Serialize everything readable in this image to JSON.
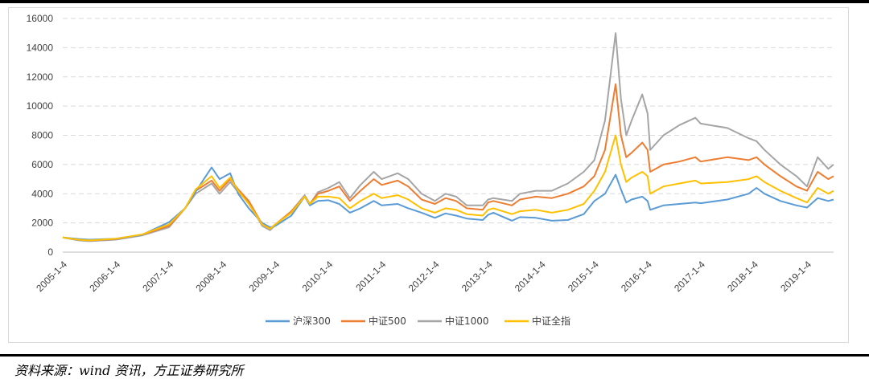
{
  "source_note": "资料来源：wind 资讯，方正证券研究所",
  "chart_data": {
    "type": "line",
    "ylim": [
      0,
      16000
    ],
    "yticks": [
      0,
      2000,
      4000,
      6000,
      8000,
      10000,
      12000,
      14000,
      16000
    ],
    "ytick_labels": [
      "0",
      "2000",
      "4000",
      "6000",
      "8000",
      "10000",
      "12000",
      "14000",
      "16000"
    ],
    "xlim": [
      2005.0,
      2019.5
    ],
    "xticks": [
      2005,
      2006,
      2007,
      2008,
      2009,
      2010,
      2011,
      2012,
      2013,
      2014,
      2015,
      2016,
      2017,
      2018,
      2019
    ],
    "xtick_labels": [
      "2005-1-4",
      "2006-1-4",
      "2007-1-4",
      "2008-1-4",
      "2009-1-4",
      "2010-1-4",
      "2011-1-4",
      "2012-1-4",
      "2013-1-4",
      "2014-1-4",
      "2015-1-4",
      "2016-1-4",
      "2017-1-4",
      "2018-1-4",
      "2019-1-4"
    ],
    "grid": "horizontal-dashed",
    "legend_position": "bottom",
    "series": [
      {
        "name": "沪深300",
        "color": "#5b9bd5",
        "points": [
          [
            2005.0,
            1000
          ],
          [
            2005.3,
            900
          ],
          [
            2005.5,
            850
          ],
          [
            2006.0,
            923
          ],
          [
            2006.5,
            1200
          ],
          [
            2007.0,
            2050
          ],
          [
            2007.3,
            3000
          ],
          [
            2007.6,
            4700
          ],
          [
            2007.8,
            5800
          ],
          [
            2007.95,
            5000
          ],
          [
            2008.15,
            5400
          ],
          [
            2008.3,
            4000
          ],
          [
            2008.5,
            3000
          ],
          [
            2008.75,
            2000
          ],
          [
            2008.9,
            1700
          ],
          [
            2009.0,
            1800
          ],
          [
            2009.3,
            2500
          ],
          [
            2009.55,
            3800
          ],
          [
            2009.65,
            3200
          ],
          [
            2009.8,
            3500
          ],
          [
            2010.0,
            3550
          ],
          [
            2010.2,
            3300
          ],
          [
            2010.4,
            2700
          ],
          [
            2010.6,
            3000
          ],
          [
            2010.85,
            3500
          ],
          [
            2011.0,
            3200
          ],
          [
            2011.3,
            3300
          ],
          [
            2011.5,
            3000
          ],
          [
            2011.75,
            2700
          ],
          [
            2012.0,
            2350
          ],
          [
            2012.2,
            2650
          ],
          [
            2012.4,
            2500
          ],
          [
            2012.6,
            2300
          ],
          [
            2012.9,
            2200
          ],
          [
            2013.0,
            2550
          ],
          [
            2013.1,
            2700
          ],
          [
            2013.45,
            2150
          ],
          [
            2013.6,
            2400
          ],
          [
            2013.9,
            2350
          ],
          [
            2014.2,
            2150
          ],
          [
            2014.5,
            2200
          ],
          [
            2014.8,
            2600
          ],
          [
            2015.0,
            3500
          ],
          [
            2015.2,
            4000
          ],
          [
            2015.4,
            5300
          ],
          [
            2015.5,
            4300
          ],
          [
            2015.6,
            3400
          ],
          [
            2015.7,
            3600
          ],
          [
            2015.9,
            3800
          ],
          [
            2016.0,
            3500
          ],
          [
            2016.05,
            2900
          ],
          [
            2016.3,
            3200
          ],
          [
            2016.6,
            3300
          ],
          [
            2016.9,
            3400
          ],
          [
            2017.0,
            3350
          ],
          [
            2017.5,
            3600
          ],
          [
            2017.9,
            4000
          ],
          [
            2018.05,
            4400
          ],
          [
            2018.2,
            4000
          ],
          [
            2018.5,
            3500
          ],
          [
            2018.8,
            3200
          ],
          [
            2019.0,
            3050
          ],
          [
            2019.2,
            3700
          ],
          [
            2019.4,
            3500
          ],
          [
            2019.5,
            3600
          ]
        ]
      },
      {
        "name": "中证500",
        "color": "#ed7d31",
        "points": [
          [
            2005.0,
            1000
          ],
          [
            2005.3,
            850
          ],
          [
            2005.5,
            800
          ],
          [
            2006.0,
            900
          ],
          [
            2006.5,
            1200
          ],
          [
            2007.0,
            1800
          ],
          [
            2007.3,
            3000
          ],
          [
            2007.5,
            4200
          ],
          [
            2007.8,
            4900
          ],
          [
            2007.95,
            4200
          ],
          [
            2008.15,
            5000
          ],
          [
            2008.3,
            4300
          ],
          [
            2008.5,
            3500
          ],
          [
            2008.75,
            1900
          ],
          [
            2008.9,
            1600
          ],
          [
            2009.0,
            1900
          ],
          [
            2009.3,
            2800
          ],
          [
            2009.55,
            3800
          ],
          [
            2009.65,
            3300
          ],
          [
            2009.8,
            4000
          ],
          [
            2010.0,
            4200
          ],
          [
            2010.2,
            4500
          ],
          [
            2010.4,
            3500
          ],
          [
            2010.6,
            4200
          ],
          [
            2010.85,
            5000
          ],
          [
            2011.0,
            4600
          ],
          [
            2011.3,
            4900
          ],
          [
            2011.5,
            4500
          ],
          [
            2011.75,
            3600
          ],
          [
            2012.0,
            3300
          ],
          [
            2012.2,
            3700
          ],
          [
            2012.4,
            3500
          ],
          [
            2012.6,
            3000
          ],
          [
            2012.9,
            2900
          ],
          [
            2013.0,
            3400
          ],
          [
            2013.1,
            3500
          ],
          [
            2013.45,
            3200
          ],
          [
            2013.6,
            3600
          ],
          [
            2013.9,
            3800
          ],
          [
            2014.2,
            3700
          ],
          [
            2014.5,
            4000
          ],
          [
            2014.8,
            4500
          ],
          [
            2015.0,
            5200
          ],
          [
            2015.2,
            7000
          ],
          [
            2015.4,
            11500
          ],
          [
            2015.5,
            8000
          ],
          [
            2015.6,
            6500
          ],
          [
            2015.7,
            6800
          ],
          [
            2015.9,
            7500
          ],
          [
            2016.0,
            7000
          ],
          [
            2016.05,
            5500
          ],
          [
            2016.3,
            6000
          ],
          [
            2016.6,
            6200
          ],
          [
            2016.9,
            6500
          ],
          [
            2017.0,
            6200
          ],
          [
            2017.5,
            6500
          ],
          [
            2017.9,
            6300
          ],
          [
            2018.05,
            6500
          ],
          [
            2018.2,
            6000
          ],
          [
            2018.5,
            5200
          ],
          [
            2018.8,
            4500
          ],
          [
            2019.0,
            4200
          ],
          [
            2019.2,
            5500
          ],
          [
            2019.4,
            5000
          ],
          [
            2019.5,
            5200
          ]
        ]
      },
      {
        "name": "中证1000",
        "color": "#a5a5a5",
        "points": [
          [
            2005.0,
            1000
          ],
          [
            2005.3,
            800
          ],
          [
            2005.5,
            750
          ],
          [
            2006.0,
            850
          ],
          [
            2006.5,
            1150
          ],
          [
            2007.0,
            1700
          ],
          [
            2007.3,
            3000
          ],
          [
            2007.5,
            4000
          ],
          [
            2007.8,
            4700
          ],
          [
            2007.95,
            4000
          ],
          [
            2008.15,
            4800
          ],
          [
            2008.3,
            4100
          ],
          [
            2008.5,
            3400
          ],
          [
            2008.75,
            1800
          ],
          [
            2008.9,
            1500
          ],
          [
            2009.0,
            1850
          ],
          [
            2009.3,
            2800
          ],
          [
            2009.55,
            3900
          ],
          [
            2009.65,
            3300
          ],
          [
            2009.8,
            4100
          ],
          [
            2010.0,
            4400
          ],
          [
            2010.2,
            4800
          ],
          [
            2010.4,
            3700
          ],
          [
            2010.6,
            4600
          ],
          [
            2010.85,
            5500
          ],
          [
            2011.0,
            5000
          ],
          [
            2011.3,
            5400
          ],
          [
            2011.5,
            5000
          ],
          [
            2011.75,
            4000
          ],
          [
            2012.0,
            3500
          ],
          [
            2012.2,
            4000
          ],
          [
            2012.4,
            3800
          ],
          [
            2012.6,
            3200
          ],
          [
            2012.9,
            3200
          ],
          [
            2013.0,
            3600
          ],
          [
            2013.1,
            3700
          ],
          [
            2013.45,
            3500
          ],
          [
            2013.6,
            4000
          ],
          [
            2013.9,
            4200
          ],
          [
            2014.2,
            4200
          ],
          [
            2014.5,
            4700
          ],
          [
            2014.8,
            5500
          ],
          [
            2015.0,
            6300
          ],
          [
            2015.2,
            9000
          ],
          [
            2015.4,
            15000
          ],
          [
            2015.5,
            10500
          ],
          [
            2015.6,
            8000
          ],
          [
            2015.7,
            9000
          ],
          [
            2015.9,
            10800
          ],
          [
            2016.0,
            9500
          ],
          [
            2016.05,
            7000
          ],
          [
            2016.3,
            8000
          ],
          [
            2016.6,
            8700
          ],
          [
            2016.9,
            9200
          ],
          [
            2017.0,
            8800
          ],
          [
            2017.5,
            8500
          ],
          [
            2017.9,
            7800
          ],
          [
            2018.05,
            7600
          ],
          [
            2018.2,
            7000
          ],
          [
            2018.5,
            6000
          ],
          [
            2018.8,
            5200
          ],
          [
            2019.0,
            4500
          ],
          [
            2019.2,
            6500
          ],
          [
            2019.4,
            5700
          ],
          [
            2019.5,
            6000
          ]
        ]
      },
      {
        "name": "中证全指",
        "color": "#ffc000",
        "points": [
          [
            2005.0,
            1000
          ],
          [
            2005.3,
            850
          ],
          [
            2005.5,
            800
          ],
          [
            2006.0,
            920
          ],
          [
            2006.5,
            1220
          ],
          [
            2007.0,
            1900
          ],
          [
            2007.3,
            3000
          ],
          [
            2007.5,
            4300
          ],
          [
            2007.8,
            5200
          ],
          [
            2007.95,
            4400
          ],
          [
            2008.15,
            5100
          ],
          [
            2008.3,
            4200
          ],
          [
            2008.5,
            3300
          ],
          [
            2008.75,
            1900
          ],
          [
            2008.9,
            1600
          ],
          [
            2009.0,
            1900
          ],
          [
            2009.3,
            2700
          ],
          [
            2009.55,
            3800
          ],
          [
            2009.65,
            3300
          ],
          [
            2009.8,
            3800
          ],
          [
            2010.0,
            3800
          ],
          [
            2010.2,
            3700
          ],
          [
            2010.4,
            3000
          ],
          [
            2010.6,
            3500
          ],
          [
            2010.85,
            4000
          ],
          [
            2011.0,
            3700
          ],
          [
            2011.3,
            3900
          ],
          [
            2011.5,
            3600
          ],
          [
            2011.75,
            3000
          ],
          [
            2012.0,
            2700
          ],
          [
            2012.2,
            3000
          ],
          [
            2012.4,
            2900
          ],
          [
            2012.6,
            2600
          ],
          [
            2012.9,
            2500
          ],
          [
            2013.0,
            2900
          ],
          [
            2013.1,
            3000
          ],
          [
            2013.45,
            2600
          ],
          [
            2013.6,
            2800
          ],
          [
            2013.9,
            2900
          ],
          [
            2014.2,
            2700
          ],
          [
            2014.5,
            2900
          ],
          [
            2014.8,
            3300
          ],
          [
            2015.0,
            4200
          ],
          [
            2015.2,
            5500
          ],
          [
            2015.4,
            8000
          ],
          [
            2015.5,
            6000
          ],
          [
            2015.6,
            4800
          ],
          [
            2015.7,
            5100
          ],
          [
            2015.9,
            5500
          ],
          [
            2016.0,
            5200
          ],
          [
            2016.05,
            4000
          ],
          [
            2016.3,
            4500
          ],
          [
            2016.6,
            4700
          ],
          [
            2016.9,
            4900
          ],
          [
            2017.0,
            4700
          ],
          [
            2017.5,
            4800
          ],
          [
            2017.9,
            5000
          ],
          [
            2018.05,
            5200
          ],
          [
            2018.2,
            4800
          ],
          [
            2018.5,
            4200
          ],
          [
            2018.8,
            3700
          ],
          [
            2019.0,
            3400
          ],
          [
            2019.2,
            4400
          ],
          [
            2019.4,
            4000
          ],
          [
            2019.5,
            4200
          ]
        ]
      }
    ]
  }
}
